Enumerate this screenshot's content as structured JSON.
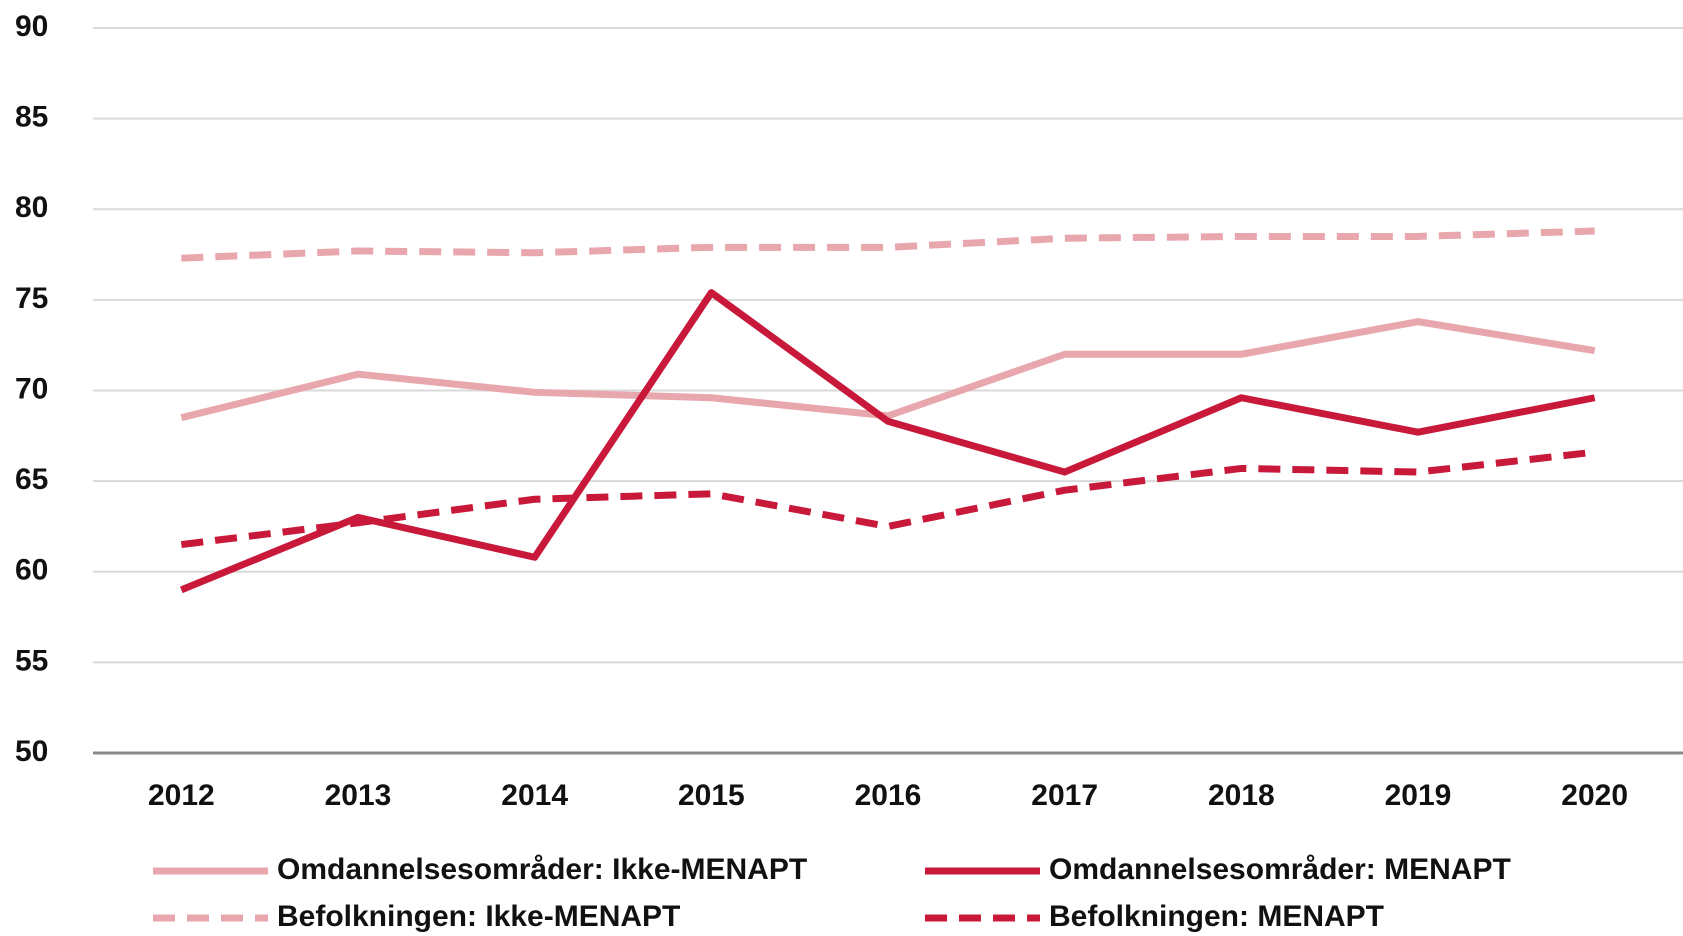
{
  "chart_data": {
    "type": "line",
    "categories": [
      "2012",
      "2013",
      "2014",
      "2015",
      "2016",
      "2017",
      "2018",
      "2019",
      "2020"
    ],
    "series": [
      {
        "name": "Omdannelsesområder: Ikke-MENAPT",
        "color": "#e8a7ad",
        "dashed": false,
        "values": [
          68.5,
          70.9,
          69.9,
          69.6,
          68.6,
          72.0,
          72.0,
          73.8,
          72.2
        ]
      },
      {
        "name": "Omdannelsesområder: MENAPT",
        "color": "#c8193a",
        "dashed": false,
        "values": [
          59.0,
          63.0,
          60.8,
          75.4,
          68.3,
          65.5,
          69.6,
          67.7,
          69.6
        ]
      },
      {
        "name": "Befolkningen: Ikke-MENAPT",
        "color": "#e8a7ad",
        "dashed": true,
        "values": [
          77.3,
          77.7,
          77.6,
          77.9,
          77.9,
          78.4,
          78.5,
          78.5,
          78.8
        ]
      },
      {
        "name": "Befolkningen: MENAPT",
        "color": "#c8193a",
        "dashed": true,
        "values": [
          61.5,
          62.7,
          64.0,
          64.3,
          62.5,
          64.5,
          65.7,
          65.5,
          66.6
        ]
      }
    ],
    "ylim": [
      50,
      90
    ],
    "yticks": [
      50,
      55,
      60,
      65,
      70,
      75,
      80,
      85,
      90
    ],
    "grid": true
  }
}
